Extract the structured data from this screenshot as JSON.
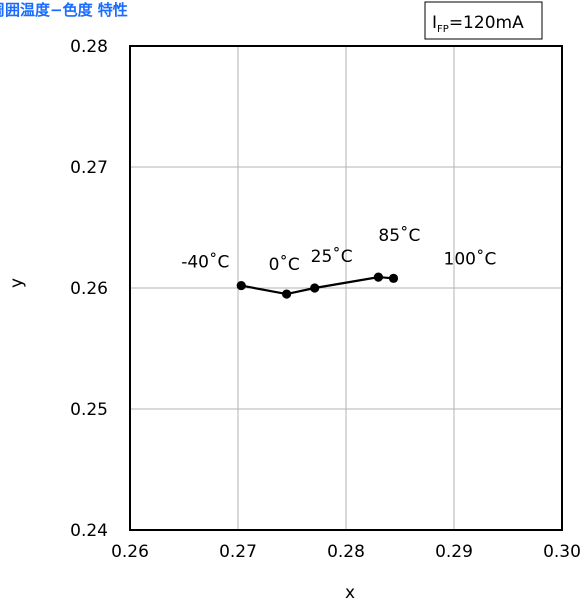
{
  "chart_data": {
    "type": "line",
    "title": "周囲温度−色度 特性",
    "condition": {
      "symbol": "I",
      "subscript": "FP",
      "value": "=120mA"
    },
    "xlabel": "x",
    "ylabel": "y",
    "xlim": [
      0.26,
      0.3
    ],
    "ylim": [
      0.24,
      0.28
    ],
    "x_ticks": [
      "0.26",
      "0.27",
      "0.28",
      "0.29",
      "0.30"
    ],
    "y_ticks": [
      "0.24",
      "0.25",
      "0.26",
      "0.27",
      "0.28"
    ],
    "grid": true,
    "series": [
      {
        "color": "#000000",
        "points": [
          {
            "x": 0.2703,
            "y": 0.2602,
            "label": "-40˚C"
          },
          {
            "x": 0.2745,
            "y": 0.2595,
            "label": "0˚C"
          },
          {
            "x": 0.2771,
            "y": 0.26,
            "label": "25˚C"
          },
          {
            "x": 0.283,
            "y": 0.2609,
            "label": "85˚C"
          },
          {
            "x": 0.2844,
            "y": 0.2608,
            "label": "100˚C"
          }
        ]
      }
    ],
    "title_color": "#1a6cff"
  }
}
